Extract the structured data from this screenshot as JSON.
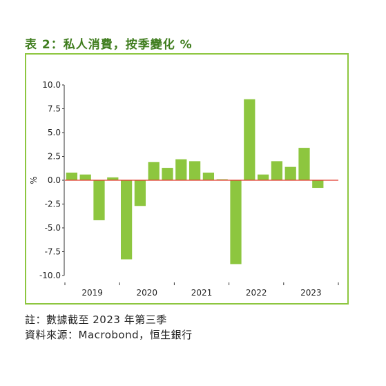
{
  "title": "表 2：私人消費，按季變化 %",
  "notes": {
    "note": "註：數據截至 2023 年第三季",
    "source": "資料來源：Macrobond，恒生銀行"
  },
  "colors": {
    "title": "#3f7d1e",
    "frame": "#8dc63f",
    "bar": "#8dc63f",
    "zero_line": "#e23b2e"
  },
  "chart_data": {
    "type": "bar",
    "ylabel": "%",
    "xlabel": "",
    "ylim": [
      -10.0,
      10.0
    ],
    "yticks": [
      "10.0",
      "7.5",
      "5.0",
      "2.5",
      "0.0",
      "-2.5",
      "-5.0",
      "-7.5",
      "-10.0"
    ],
    "year_labels": [
      "2019",
      "2020",
      "2021",
      "2022",
      "2023"
    ],
    "categories": [
      "2019Q1",
      "2019Q2",
      "2019Q3",
      "2019Q4",
      "2020Q1",
      "2020Q2",
      "2020Q3",
      "2020Q4",
      "2021Q1",
      "2021Q2",
      "2021Q3",
      "2021Q4",
      "2022Q1",
      "2022Q2",
      "2022Q3",
      "2022Q4",
      "2023Q1",
      "2023Q2",
      "2023Q3",
      "2023Q4"
    ],
    "values": [
      0.8,
      0.6,
      -4.2,
      0.3,
      -8.3,
      -2.7,
      1.9,
      1.3,
      2.2,
      2.0,
      0.8,
      0.1,
      -8.8,
      8.5,
      0.6,
      2.0,
      1.4,
      3.4,
      -0.8,
      null
    ],
    "grid": false,
    "legend": "none"
  }
}
